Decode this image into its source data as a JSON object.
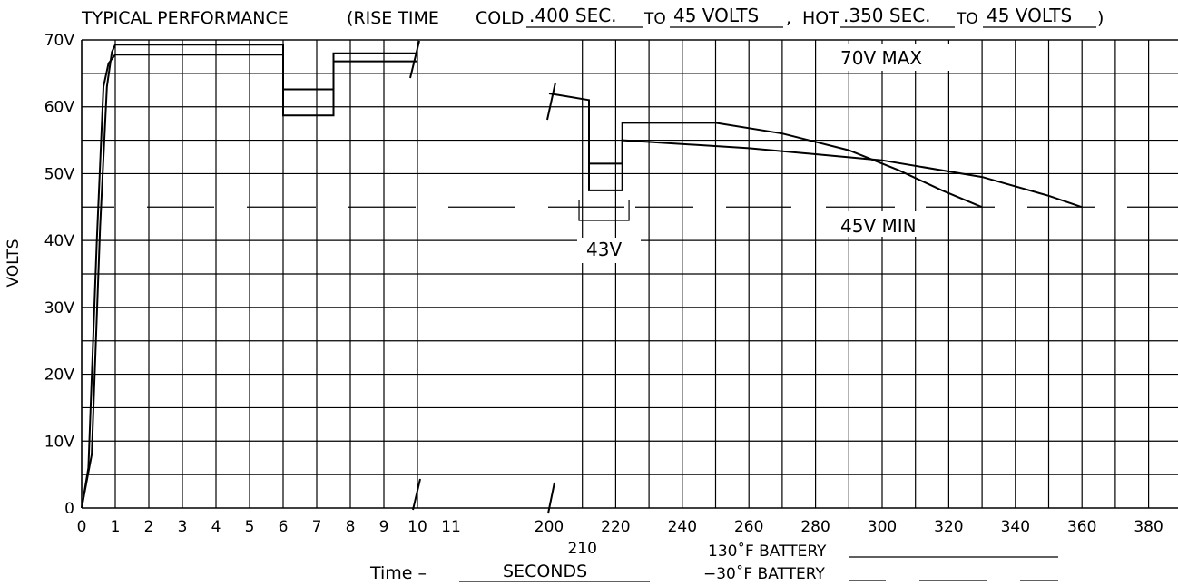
{
  "header": {
    "title": "TYPICAL PERFORMANCE",
    "rise_open": "(RISE TIME",
    "cold_label": "COLD",
    "cold_time": ".400 SEC.",
    "to_1": "TO",
    "cold_volts": "45 VOLTS",
    "comma": ",",
    "hot_label": "HOT",
    "hot_time": ".350 SEC.",
    "to_2": "TO",
    "hot_volts": "45 VOLTS",
    "rise_close": ")"
  },
  "annotations": {
    "max": "70V MAX",
    "min": "45V MIN",
    "drop": "43V"
  },
  "footer": {
    "time_label": "Time –",
    "seconds": "SECONDS",
    "hot_battery": "130˚F BATTERY",
    "cold_battery": "−30˚F BATTERY"
  },
  "chart_data": {
    "type": "line",
    "ylabel": "VOLTS",
    "xlabel": "Time – SECONDS",
    "ylim": [
      0,
      70
    ],
    "y_ticks": [
      "0",
      "10V",
      "20V",
      "30V",
      "40V",
      "50V",
      "60V",
      "70V"
    ],
    "x_ticks": [
      "0",
      "1",
      "2",
      "3",
      "4",
      "5",
      "6",
      "7",
      "8",
      "9",
      "10",
      "11",
      "200",
      "210",
      "220",
      "240",
      "260",
      "280",
      "300",
      "320",
      "340",
      "360",
      "380"
    ],
    "reference_lines": [
      {
        "label": "70V MAX",
        "value": 70
      },
      {
        "label": "45V MIN",
        "value": 45
      }
    ],
    "series": [
      {
        "name": "130˚F BATTERY",
        "points": [
          [
            0,
            0
          ],
          [
            0.2,
            6
          ],
          [
            0.45,
            40
          ],
          [
            0.65,
            63
          ],
          [
            0.8,
            66.5
          ],
          [
            1,
            67.8
          ],
          [
            3,
            67.8
          ],
          [
            6,
            67.8
          ],
          [
            6,
            58.7
          ],
          [
            7.5,
            58.7
          ],
          [
            7.5,
            66.8
          ],
          [
            10,
            66.8
          ],
          [
            212,
            60.8
          ],
          [
            212,
            47.5
          ],
          [
            222,
            47.5
          ],
          [
            222,
            55
          ],
          [
            260,
            53.8
          ],
          [
            300,
            52
          ],
          [
            330,
            49.5
          ],
          [
            350,
            46.7
          ],
          [
            360,
            45
          ]
        ]
      },
      {
        "name": "−30˚F BATTERY",
        "points": [
          [
            0,
            0
          ],
          [
            0.3,
            8
          ],
          [
            0.55,
            42
          ],
          [
            0.75,
            63
          ],
          [
            0.9,
            68.2
          ],
          [
            1,
            69.3
          ],
          [
            3,
            69.3
          ],
          [
            6,
            69.3
          ],
          [
            6,
            62.6
          ],
          [
            7.5,
            62.6
          ],
          [
            7.5,
            68
          ],
          [
            10,
            68
          ],
          [
            200,
            62
          ],
          [
            212,
            61
          ],
          [
            212,
            51.5
          ],
          [
            222,
            51.5
          ],
          [
            222,
            57.6
          ],
          [
            250,
            57.6
          ],
          [
            270,
            56
          ],
          [
            290,
            53.5
          ],
          [
            305,
            50.5
          ],
          [
            318,
            47.5
          ],
          [
            330,
            45
          ]
        ]
      }
    ],
    "drop_marker": {
      "label": "43V",
      "x_from": 209,
      "x_to": 224,
      "value": 43
    }
  }
}
